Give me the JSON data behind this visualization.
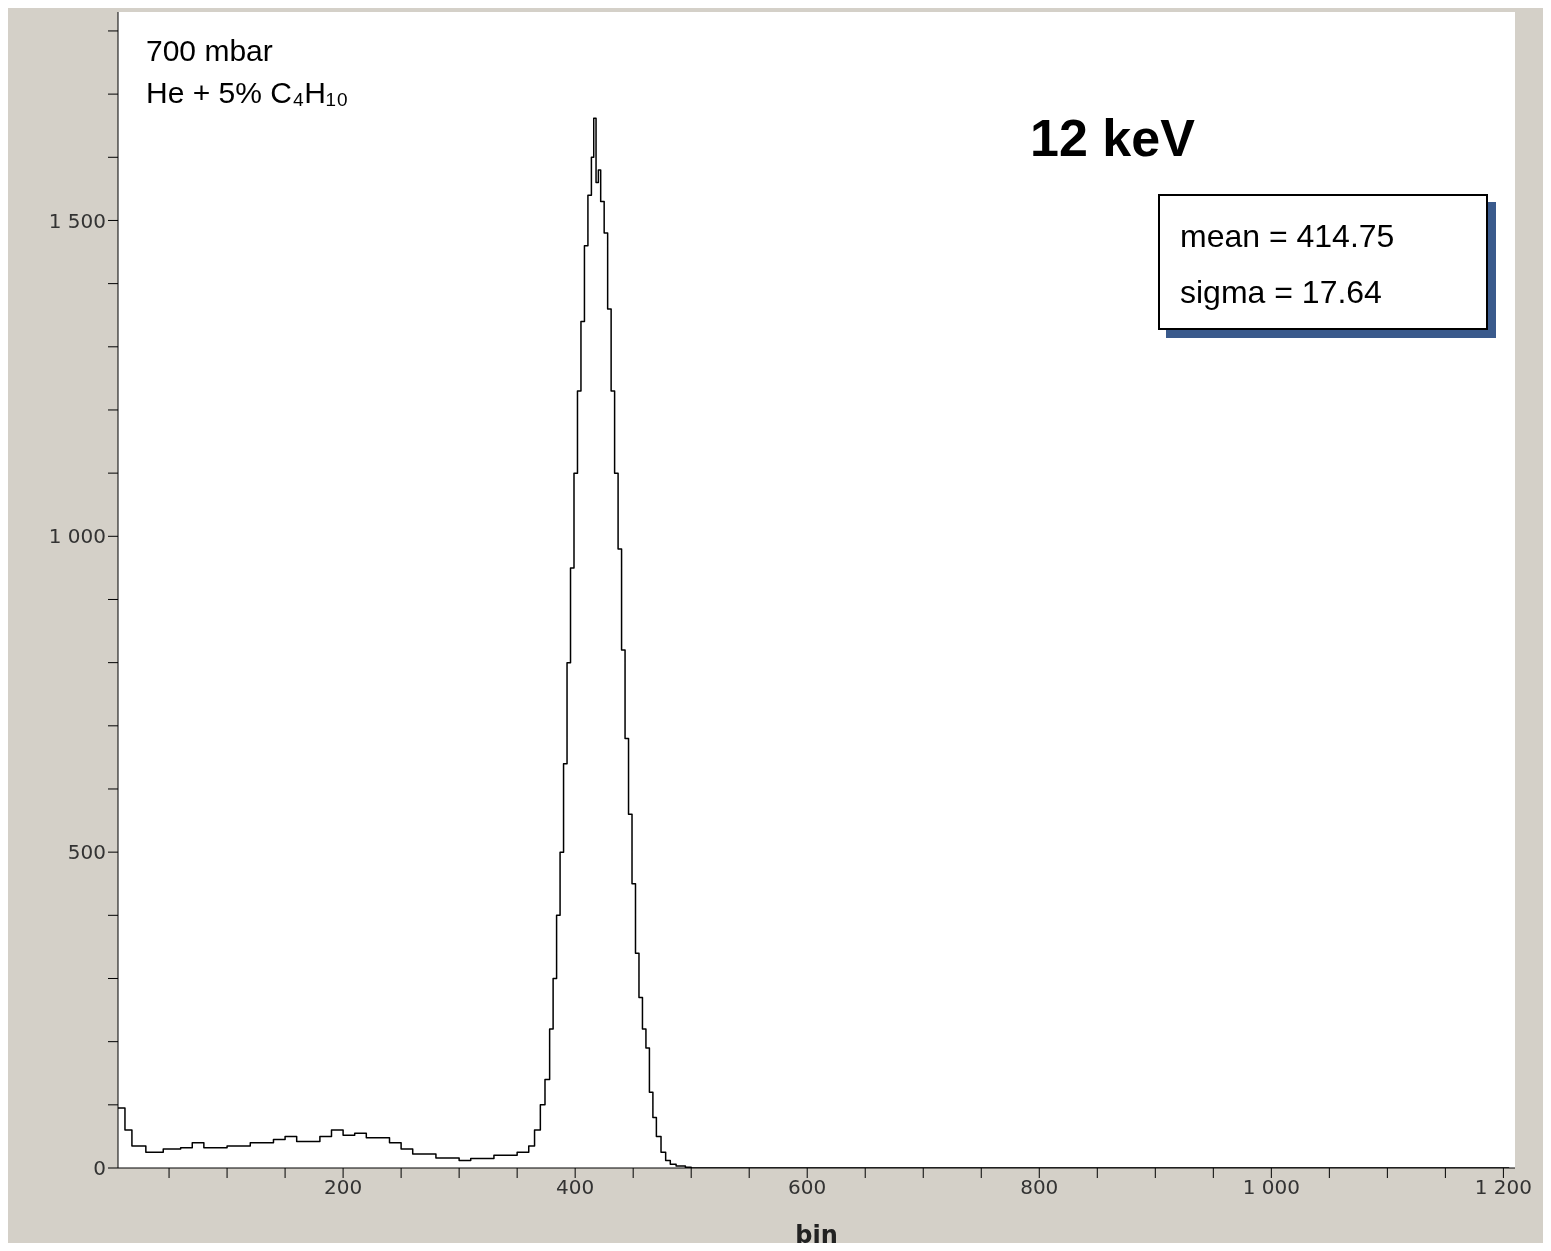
{
  "chart_data": {
    "type": "step",
    "title": "12 keV",
    "xlabel": "bin",
    "annotations": [
      "700 mbar",
      "He + 5% C₄H₁₀",
      "mean = 414.75",
      "sigma = 17.64"
    ],
    "x": [
      6,
      8,
      12,
      18,
      30,
      45,
      60,
      70,
      80,
      100,
      120,
      140,
      150,
      160,
      180,
      190,
      200,
      210,
      220,
      240,
      250,
      260,
      280,
      300,
      310,
      330,
      350,
      360,
      365,
      370,
      374,
      378,
      381,
      384,
      387,
      390,
      393,
      396,
      399,
      402,
      405,
      408,
      411,
      414,
      416,
      418,
      420,
      422,
      425,
      428,
      431,
      434,
      437,
      440,
      443,
      446,
      449,
      452,
      455,
      458,
      461,
      464,
      467,
      470,
      474,
      478,
      482,
      487,
      495,
      500,
      550,
      600,
      800,
      1000,
      1205
    ],
    "values": [
      95,
      95,
      60,
      35,
      25,
      30,
      32,
      40,
      32,
      35,
      40,
      45,
      50,
      42,
      50,
      60,
      52,
      55,
      48,
      40,
      30,
      22,
      16,
      12,
      15,
      20,
      25,
      35,
      60,
      100,
      140,
      220,
      300,
      400,
      500,
      640,
      800,
      950,
      1100,
      1230,
      1340,
      1460,
      1540,
      1600,
      1662,
      1560,
      1580,
      1530,
      1480,
      1360,
      1230,
      1100,
      980,
      820,
      680,
      560,
      450,
      340,
      270,
      220,
      190,
      120,
      80,
      50,
      25,
      12,
      6,
      3,
      1,
      0,
      0,
      0,
      0,
      0,
      0
    ],
    "color": "#000000",
    "xlim": [
      6,
      1210
    ],
    "xticks": [
      {
        "value": 50,
        "label": null
      },
      {
        "value": 100,
        "label": null
      },
      {
        "value": 150,
        "label": null
      },
      200,
      {
        "value": 250,
        "label": null
      },
      {
        "value": 300,
        "label": null
      },
      {
        "value": 350,
        "label": null
      },
      400,
      {
        "value": 450,
        "label": null
      },
      {
        "value": 500,
        "label": null
      },
      {
        "value": 550,
        "label": null
      },
      600,
      {
        "value": 650,
        "label": null
      },
      {
        "value": 700,
        "label": null
      },
      {
        "value": 750,
        "label": null
      },
      800,
      {
        "value": 850,
        "label": null
      },
      {
        "value": 900,
        "label": null
      },
      {
        "value": 950,
        "label": null
      },
      {
        "value": 1000,
        "label": "1 000"
      },
      {
        "value": 1050,
        "label": null
      },
      {
        "value": 1100,
        "label": null
      },
      {
        "value": 1150,
        "label": null
      },
      {
        "value": 1200,
        "label": "1 200"
      }
    ],
    "ylim": [
      0,
      1830
    ],
    "yticks": [
      0,
      {
        "value": 100,
        "label": null
      },
      {
        "value": 200,
        "label": null
      },
      {
        "value": 300,
        "label": null
      },
      {
        "value": 400,
        "label": null
      },
      500,
      {
        "value": 600,
        "label": null
      },
      {
        "value": 700,
        "label": null
      },
      {
        "value": 800,
        "label": null
      },
      {
        "value": 900,
        "label": null
      },
      {
        "value": 1000,
        "label": "1 000"
      },
      {
        "value": 1100,
        "label": null
      },
      {
        "value": 1200,
        "label": null
      },
      {
        "value": 1300,
        "label": null
      },
      {
        "value": 1400,
        "label": null
      },
      {
        "value": 1500,
        "label": "1 500"
      },
      {
        "value": 1600,
        "label": null
      },
      {
        "value": 1700,
        "label": null
      },
      {
        "value": 1800,
        "label": null
      }
    ]
  }
}
